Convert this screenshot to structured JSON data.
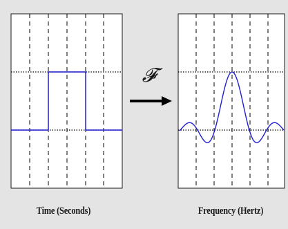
{
  "left_panel": {
    "caption": "Time (Seconds)",
    "signal": "rectangular-pulse"
  },
  "right_panel": {
    "caption": "Frequency (Hertz)",
    "signal": "sinc"
  },
  "transform": {
    "symbol": "𝓕",
    "arrow": "right-arrow"
  },
  "colors": {
    "background": "#e4e4e4",
    "plot_background": "#ffffff",
    "signal": "#1f1fd0",
    "grid": "#000000"
  }
}
